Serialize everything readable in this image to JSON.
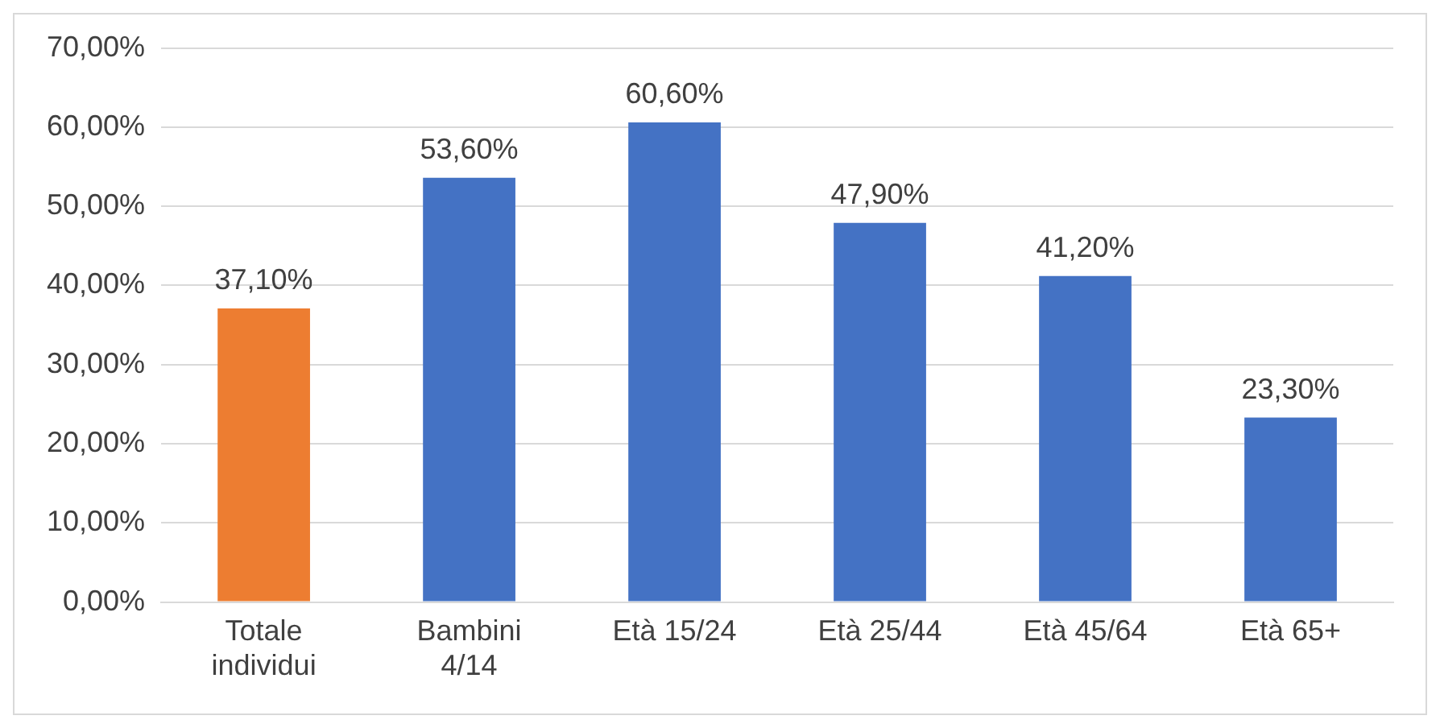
{
  "chart_data": {
    "type": "bar",
    "categories": [
      "Totale individui",
      "Bambini 4/14",
      "Età 15/24",
      "Età 25/44",
      "Età 45/64",
      "Età 65+"
    ],
    "values": [
      37.1,
      53.6,
      60.6,
      47.9,
      41.2,
      23.3
    ],
    "colors": [
      "#ed7d31",
      "#4472c4",
      "#4472c4",
      "#4472c4",
      "#4472c4",
      "#4472c4"
    ],
    "value_labels": [
      "37,10%",
      "53,60%",
      "60,60%",
      "47,90%",
      "41,20%",
      "23,30%"
    ],
    "ylim": [
      0,
      70
    ],
    "yticks": [
      {
        "value": 0,
        "label": "0,00%"
      },
      {
        "value": 10,
        "label": "10,00%"
      },
      {
        "value": 20,
        "label": "20,00%"
      },
      {
        "value": 30,
        "label": "30,00%"
      },
      {
        "value": 40,
        "label": "40,00%"
      },
      {
        "value": 50,
        "label": "50,00%"
      },
      {
        "value": 60,
        "label": "60,00%"
      },
      {
        "value": 70,
        "label": "70,00%"
      }
    ],
    "grid": "y",
    "legend": false
  }
}
